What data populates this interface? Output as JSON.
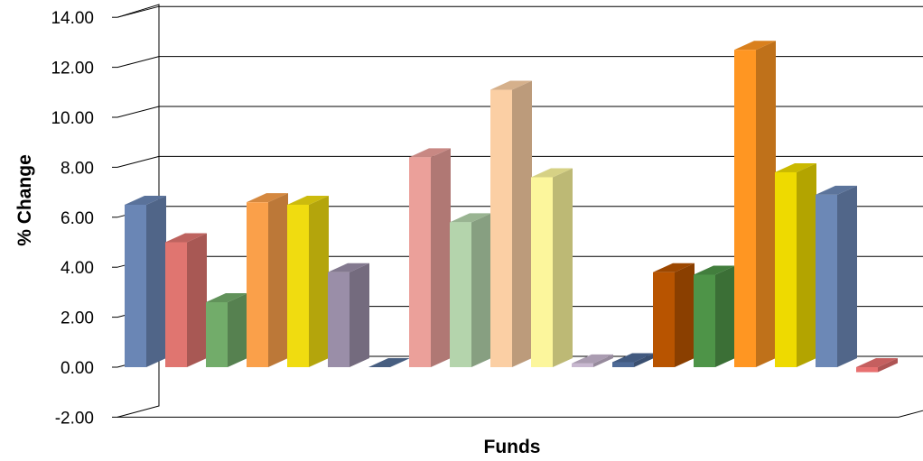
{
  "chart_data": {
    "type": "bar",
    "title": "",
    "xlabel": "Funds",
    "ylabel": "% Change",
    "ylim": [
      -2,
      14
    ],
    "yticks": [
      "-2.00",
      "0.00",
      "2.00",
      "4.00",
      "6.00",
      "8.00",
      "10.00",
      "12.00",
      "14.00"
    ],
    "grid": true,
    "legend": "none",
    "series": [
      {
        "values": [
          6.5
        ],
        "color": "#6A86B5"
      },
      {
        "values": [
          5.0
        ],
        "color": "#E07570"
      },
      {
        "values": [
          2.6
        ],
        "color": "#72AC6A"
      },
      {
        "values": [
          6.6
        ],
        "color": "#FAA04A"
      },
      {
        "values": [
          6.5
        ],
        "color": "#F0DC10"
      },
      {
        "values": [
          3.8
        ],
        "color": "#9A8EA8"
      },
      {
        "values": [
          0.0
        ],
        "color": "#546E96"
      },
      {
        "values": [
          8.4
        ],
        "color": "#EBA09A"
      },
      {
        "values": [
          5.8
        ],
        "color": "#B4D4AC"
      },
      {
        "values": [
          11.1
        ],
        "color": "#FBCFA4"
      },
      {
        "values": [
          7.6
        ],
        "color": "#FCF69C"
      },
      {
        "values": [
          0.15
        ],
        "color": "#C8B8D0"
      },
      {
        "values": [
          0.2
        ],
        "color": "#4E6A96"
      },
      {
        "values": [
          3.8
        ],
        "color": "#B85400"
      },
      {
        "values": [
          3.7
        ],
        "color": "#4E9448"
      },
      {
        "values": [
          12.7
        ],
        "color": "#FF9622"
      },
      {
        "values": [
          7.8
        ],
        "color": "#EEDA00"
      },
      {
        "values": [
          6.9
        ],
        "color": "#6C88B6"
      },
      {
        "values": [
          -0.2
        ],
        "color": "#E87070"
      }
    ]
  }
}
